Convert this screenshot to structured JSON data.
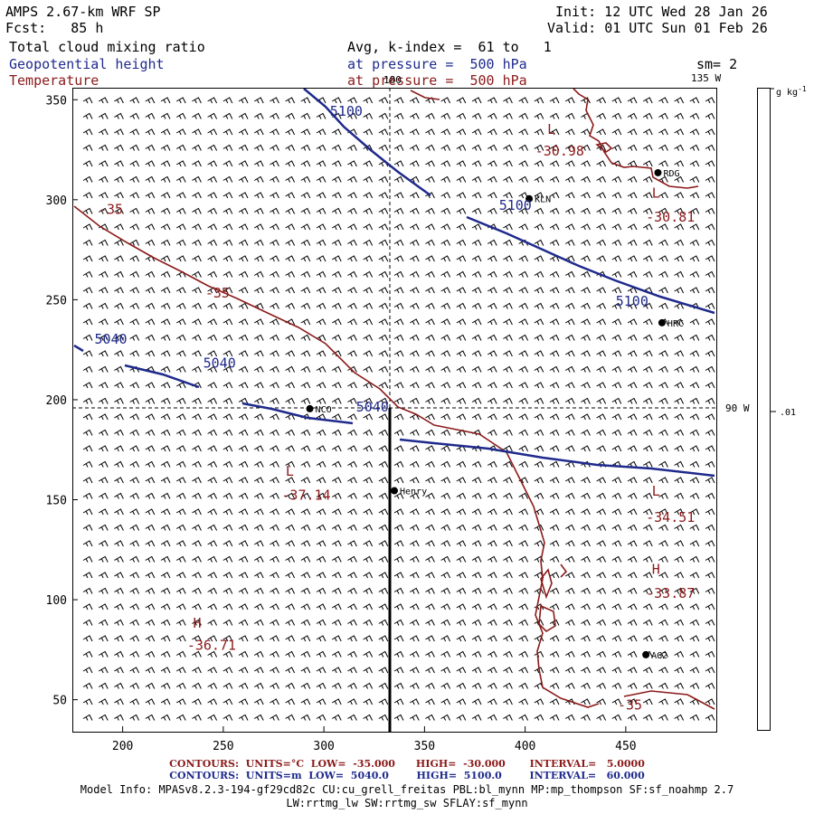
{
  "header": {
    "model": "AMPS 2.67-km WRF SP",
    "fcst": "Fcst:   85 h",
    "init": "Init: 12 UTC Wed 28 Jan 26",
    "valid": "Valid: 01 UTC Sun 01 Feb 26",
    "field1": "Total cloud mixing ratio",
    "field2": "Geopotential height",
    "field3": "Temperature",
    "avg": "Avg, k-index =  61 to   1",
    "pres1": "at pressure =  500 hPa",
    "pres2": "at pressure =  500 hPa",
    "sm": "sm= 2"
  },
  "map": {
    "lon_135": "135 W",
    "lon_90": "90 W",
    "lon_180": "180",
    "x_ticks": [
      "200",
      "250",
      "300",
      "350",
      "400",
      "450"
    ],
    "y_ticks": [
      "50",
      "100",
      "150",
      "200",
      "250",
      "300",
      "350"
    ],
    "stations": [
      {
        "name": "RDG",
        "x": 466,
        "y": 313.5
      },
      {
        "name": "KLN",
        "x": 402,
        "y": 300.5
      },
      {
        "name": "HRC",
        "x": 468,
        "y": 238.5
      },
      {
        "name": "NCO",
        "x": 293,
        "y": 195.5
      },
      {
        "name": "Henry",
        "x": 335,
        "y": 154.5
      },
      {
        "name": "AG2",
        "x": 460,
        "y": 72.5
      }
    ],
    "height_labels": [
      {
        "text": "5100",
        "x": 303,
        "y": 342
      },
      {
        "text": "5100",
        "x": 387,
        "y": 295
      },
      {
        "text": "5100",
        "x": 445,
        "y": 247
      },
      {
        "text": "5040",
        "x": 186,
        "y": 228
      },
      {
        "text": "5040",
        "x": 240,
        "y": 216
      },
      {
        "text": "5040",
        "x": 316,
        "y": 194
      }
    ],
    "temp_labels": [
      {
        "text": "-35",
        "x": 188,
        "y": 293
      },
      {
        "text": "-35",
        "x": 241,
        "y": 251
      },
      {
        "text": "-35",
        "x": 446,
        "y": 45
      },
      {
        "text": "L",
        "x": 411,
        "y": 333
      },
      {
        "text": "-30.98",
        "x": 405,
        "y": 322
      },
      {
        "text": "L",
        "x": 463,
        "y": 301
      },
      {
        "text": "-30.81",
        "x": 460,
        "y": 289
      },
      {
        "text": "L",
        "x": 281,
        "y": 162
      },
      {
        "text": "-37.14",
        "x": 279,
        "y": 150
      },
      {
        "text": "L",
        "x": 463,
        "y": 152
      },
      {
        "text": "-34.51",
        "x": 460,
        "y": 139
      },
      {
        "text": "H",
        "x": 463,
        "y": 113
      },
      {
        "text": "-33.87",
        "x": 460,
        "y": 101
      },
      {
        "text": "H",
        "x": 235,
        "y": 86
      },
      {
        "text": "-36.71",
        "x": 232,
        "y": 75
      }
    ]
  },
  "colorbar": {
    "unit": "g kg",
    "unit_sup": "-1",
    "label": ".01"
  },
  "footer": {
    "temp_contours": "CONTOURS:  UNITS=°C  LOW=  -35.000      HIGH=  -30.000       INTERVAL=   5.0000",
    "hgt_contours": "CONTOURS:  UNITS=m  LOW=  5040.0        HIGH=  5100.0        INTERVAL=   60.000",
    "model_info1": "Model Info: MPASv8.2.3-194-gf29cd82c CU:cu_grell_freitas PBL:bl_mynn MP:mp_thompson SF:sf_noahmp 2.7",
    "model_info2": "LW:rrtmg_lw SW:rrtmg_sw SFLAY:sf_mynn"
  },
  "colors": {
    "height": "#1f2a8c",
    "temperature": "#8b1a1a",
    "text": "#000000"
  }
}
